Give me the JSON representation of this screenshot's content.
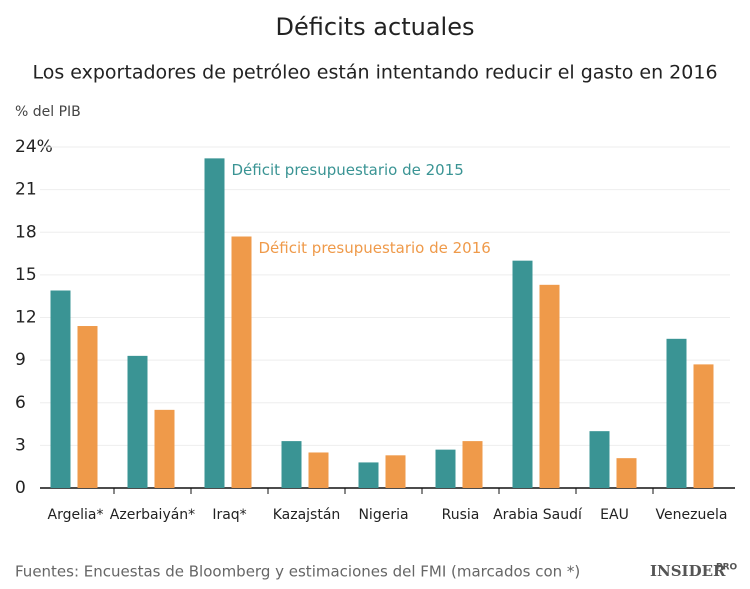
{
  "chart_data": {
    "type": "bar",
    "title": "Déficits actuales",
    "subtitle": "Los exportadores de petróleo están intentando reducir el gasto en 2016",
    "y_label": "% del PIB",
    "categories": [
      "Argelia*",
      "Azerbaiyán*",
      "Iraq*",
      "Kazajstán",
      "Nigeria",
      "Rusia",
      "Arabia Saudí",
      "EAU",
      "Venezuela"
    ],
    "series": [
      {
        "name": "Déficit presupuestario de 2015",
        "color": "#3a9494",
        "values": [
          13.9,
          9.3,
          23.2,
          3.3,
          1.8,
          2.7,
          16.0,
          4.0,
          10.5
        ]
      },
      {
        "name": "Déficit presupuestario de 2016",
        "color": "#ef9a4a",
        "values": [
          11.4,
          5.5,
          17.7,
          2.5,
          2.3,
          3.3,
          14.3,
          2.1,
          8.7
        ]
      }
    ],
    "ylim": [
      0,
      24
    ],
    "yticks": [
      0,
      3,
      6,
      9,
      12,
      15,
      18,
      21,
      {
        "value": 24,
        "label": "24%"
      }
    ],
    "grid": true,
    "source": "Fuentes: Encuestas de Bloomberg y estimaciones del FMI (marcados con *)",
    "brand": "INSIDER",
    "brand_suffix": "PRO"
  }
}
